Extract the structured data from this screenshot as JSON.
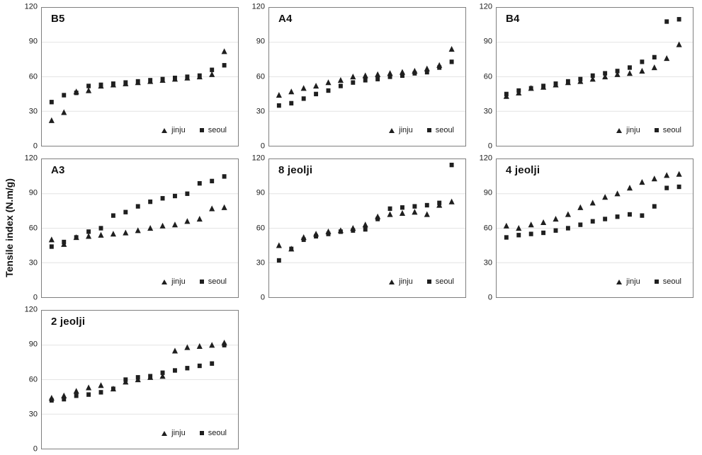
{
  "figure": {
    "ylabel": "Tensile index (N.m/g)"
  },
  "chart_data": [
    {
      "type": "scatter",
      "title": "B5",
      "ylim": [
        0,
        120
      ],
      "yticks": [
        0,
        30,
        60,
        90,
        120
      ],
      "grid": true,
      "legend_position": "bottom-right",
      "series": [
        {
          "name": "jinju",
          "marker": "triangle",
          "values": [
            22,
            29,
            47,
            48,
            52,
            53,
            54,
            55,
            56,
            57,
            58,
            59,
            60,
            62,
            82
          ]
        },
        {
          "name": "seoul",
          "marker": "square",
          "values": [
            38,
            44,
            46,
            52,
            53,
            54,
            55,
            56,
            57,
            58,
            59,
            60,
            61,
            66,
            70
          ]
        }
      ]
    },
    {
      "type": "scatter",
      "title": "A4",
      "ylim": [
        0,
        120
      ],
      "yticks": [
        0,
        30,
        60,
        90,
        120
      ],
      "grid": true,
      "legend_position": "bottom-right",
      "series": [
        {
          "name": "jinju",
          "marker": "triangle",
          "values": [
            44,
            47,
            50,
            52,
            55,
            57,
            60,
            61,
            62,
            63,
            64,
            65,
            67,
            70,
            84
          ]
        },
        {
          "name": "seoul",
          "marker": "square",
          "values": [
            35,
            37,
            41,
            45,
            48,
            52,
            55,
            57,
            58,
            60,
            61,
            63,
            64,
            68,
            73
          ]
        }
      ]
    },
    {
      "type": "scatter",
      "title": "B4",
      "ylim": [
        0,
        120
      ],
      "yticks": [
        0,
        30,
        60,
        90,
        120
      ],
      "grid": true,
      "legend_position": "bottom-right",
      "series": [
        {
          "name": "jinju",
          "marker": "triangle",
          "values": [
            43,
            46,
            50,
            51,
            53,
            55,
            56,
            58,
            60,
            62,
            63,
            65,
            68,
            76,
            88
          ]
        },
        {
          "name": "seoul",
          "marker": "square",
          "values": [
            45,
            48,
            50,
            52,
            54,
            56,
            58,
            61,
            63,
            65,
            68,
            73,
            77,
            108,
            110
          ]
        }
      ]
    },
    {
      "type": "scatter",
      "title": "A3",
      "ylim": [
        0,
        120
      ],
      "yticks": [
        0,
        30,
        60,
        90,
        120
      ],
      "grid": true,
      "legend_position": "bottom-right",
      "series": [
        {
          "name": "jinju",
          "marker": "triangle",
          "values": [
            50,
            46,
            52,
            53,
            54,
            55,
            56,
            58,
            60,
            62,
            63,
            66,
            68,
            77,
            78
          ]
        },
        {
          "name": "seoul",
          "marker": "square",
          "values": [
            44,
            48,
            52,
            57,
            60,
            71,
            74,
            79,
            83,
            86,
            88,
            90,
            99,
            101,
            105
          ]
        }
      ]
    },
    {
      "type": "scatter",
      "title": "8 jeolji",
      "ylim": [
        0,
        120
      ],
      "yticks": [
        0,
        30,
        60,
        90,
        120
      ],
      "grid": true,
      "legend_position": "bottom-right",
      "series": [
        {
          "name": "jinju",
          "marker": "triangle",
          "values": [
            45,
            42,
            52,
            55,
            57,
            58,
            60,
            63,
            70,
            72,
            73,
            74,
            72,
            80,
            83
          ]
        },
        {
          "name": "seoul",
          "marker": "square",
          "values": [
            32,
            42,
            50,
            53,
            55,
            57,
            58,
            59,
            68,
            77,
            78,
            79,
            80,
            82,
            115
          ]
        }
      ]
    },
    {
      "type": "scatter",
      "title": "4 jeolji",
      "ylim": [
        0,
        120
      ],
      "yticks": [
        0,
        30,
        60,
        90,
        120
      ],
      "grid": true,
      "legend_position": "bottom-right",
      "series": [
        {
          "name": "jinju",
          "marker": "triangle",
          "values": [
            62,
            60,
            63,
            65,
            68,
            72,
            78,
            82,
            87,
            90,
            95,
            100,
            103,
            106,
            107
          ]
        },
        {
          "name": "seoul",
          "marker": "square",
          "values": [
            52,
            54,
            55,
            56,
            58,
            60,
            63,
            66,
            68,
            70,
            72,
            71,
            79,
            95,
            96
          ]
        }
      ]
    },
    {
      "type": "scatter",
      "title": "2 jeolji",
      "ylim": [
        0,
        120
      ],
      "yticks": [
        0,
        30,
        60,
        90,
        120
      ],
      "grid": true,
      "legend_position": "bottom-right",
      "series": [
        {
          "name": "jinju",
          "marker": "triangle",
          "values": [
            44,
            46,
            50,
            53,
            55,
            52,
            58,
            60,
            62,
            63,
            85,
            88,
            89,
            90,
            92
          ]
        },
        {
          "name": "seoul",
          "marker": "square",
          "values": [
            42,
            43,
            46,
            47,
            49,
            52,
            60,
            62,
            63,
            66,
            68,
            70,
            72,
            74,
            90
          ]
        }
      ]
    }
  ]
}
